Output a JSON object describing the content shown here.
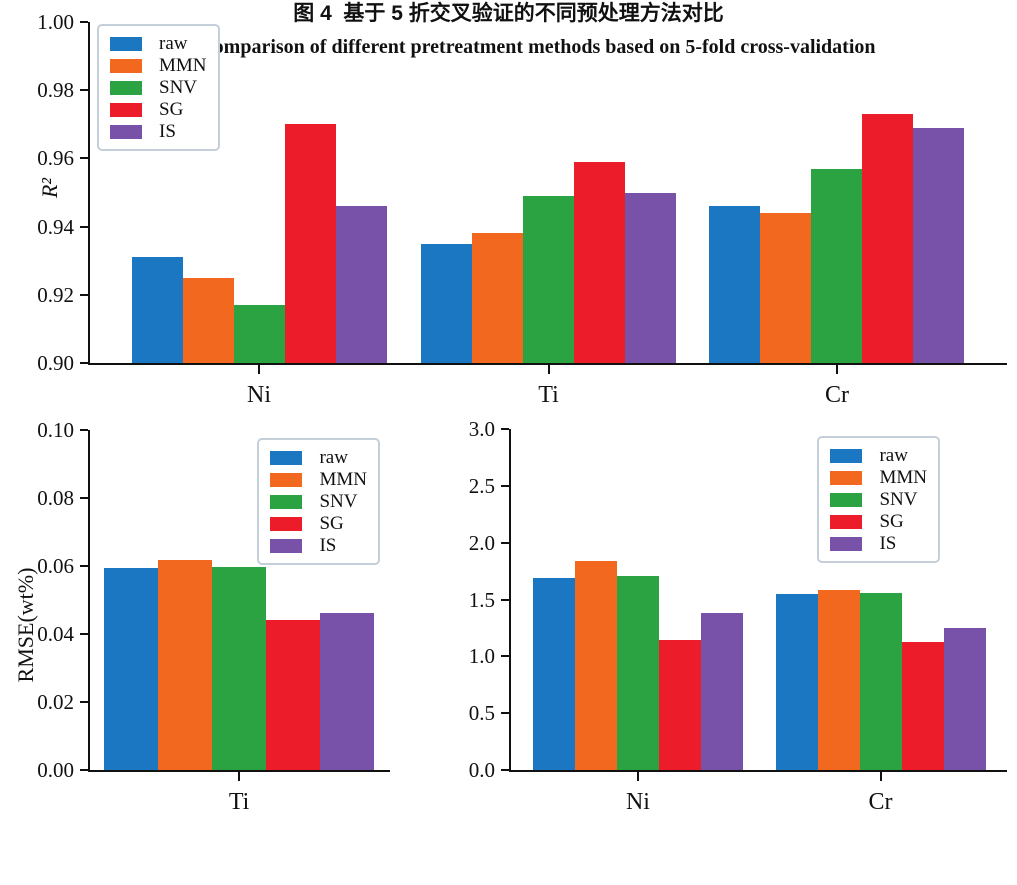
{
  "figure": {
    "caption_zh": "图 4  基于 5 折交叉验证的不同预处理方法对比",
    "caption_en": "Fig. 4  Comparison of different pretreatment methods based on 5-fold cross-validation"
  },
  "colors": {
    "raw": "#1b77c2",
    "MMN": "#f3681f",
    "SNV": "#2ca342",
    "SG": "#ec1c2b",
    "IS": "#7852a9"
  },
  "chart_data": [
    {
      "id": "r2-by-element",
      "type": "bar",
      "title": "",
      "xlabel": "",
      "ylabel": "R²",
      "categories": [
        "Ni",
        "Ti",
        "Cr"
      ],
      "series": [
        {
          "name": "raw",
          "values": [
            0.931,
            0.935,
            0.946
          ]
        },
        {
          "name": "MMN",
          "values": [
            0.925,
            0.938,
            0.944
          ]
        },
        {
          "name": "SNV",
          "values": [
            0.917,
            0.949,
            0.957
          ]
        },
        {
          "name": "SG",
          "values": [
            0.97,
            0.959,
            0.973
          ]
        },
        {
          "name": "IS",
          "values": [
            0.946,
            0.95,
            0.969
          ]
        }
      ],
      "ylim": [
        0.9,
        1.0
      ],
      "yticks": [
        "0.90",
        "0.92",
        "0.94",
        "0.96",
        "0.98",
        "1.00"
      ],
      "legend": [
        "raw",
        "MMN",
        "SNV",
        "SG",
        "IS"
      ],
      "legend_position": "upper left",
      "grid": false
    },
    {
      "id": "rmse-ti",
      "type": "bar",
      "title": "",
      "xlabel": "",
      "ylabel": "RMSE(wt%)",
      "categories": [
        "Ti"
      ],
      "series": [
        {
          "name": "raw",
          "values": [
            0.0595
          ]
        },
        {
          "name": "MMN",
          "values": [
            0.0617
          ]
        },
        {
          "name": "SNV",
          "values": [
            0.0596
          ]
        },
        {
          "name": "SG",
          "values": [
            0.0442
          ]
        },
        {
          "name": "IS",
          "values": [
            0.0463
          ]
        }
      ],
      "ylim": [
        0,
        0.1
      ],
      "yticks": [
        "0.00",
        "0.02",
        "0.04",
        "0.06",
        "0.08",
        "0.10"
      ],
      "legend": [
        "raw",
        "MMN",
        "SNV",
        "SG",
        "IS"
      ],
      "legend_position": "upper right",
      "grid": false
    },
    {
      "id": "rmse-ni-cr",
      "type": "bar",
      "title": "",
      "xlabel": "",
      "ylabel": "",
      "categories": [
        "Ni",
        "Cr"
      ],
      "series": [
        {
          "name": "raw",
          "values": [
            1.69,
            1.55
          ]
        },
        {
          "name": "MMN",
          "values": [
            1.84,
            1.58
          ]
        },
        {
          "name": "SNV",
          "values": [
            1.71,
            1.56
          ]
        },
        {
          "name": "SG",
          "values": [
            1.14,
            1.13
          ]
        },
        {
          "name": "IS",
          "values": [
            1.38,
            1.25
          ]
        }
      ],
      "ylim": [
        0,
        3.0
      ],
      "yticks": [
        "0.0",
        "0.5",
        "1.0",
        "1.5",
        "2.0",
        "2.5",
        "3.0"
      ],
      "legend": [
        "raw",
        "MMN",
        "SNV",
        "SG",
        "IS"
      ],
      "legend_position": "upper right",
      "grid": false
    }
  ]
}
